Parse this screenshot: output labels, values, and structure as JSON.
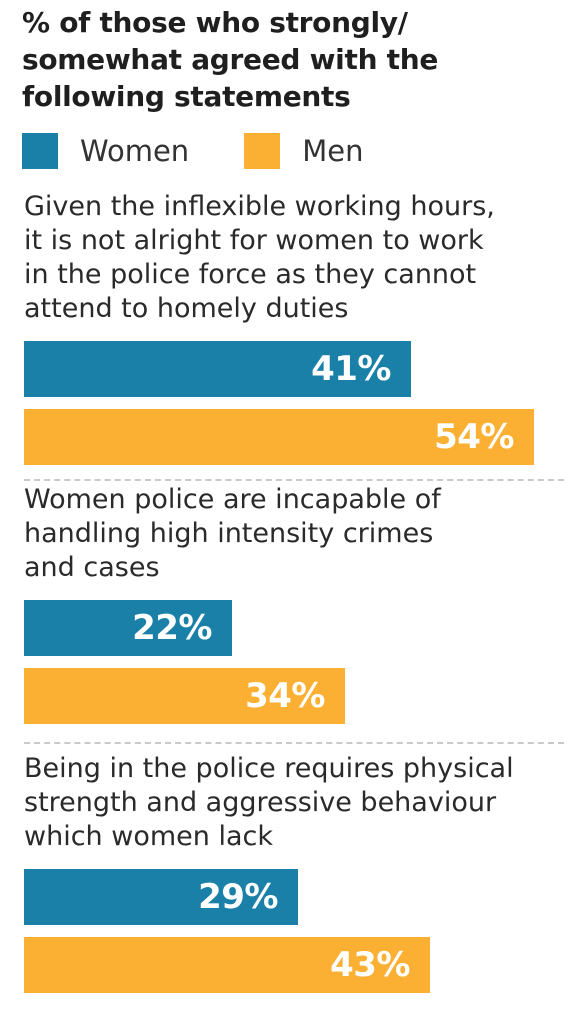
{
  "chart_data": {
    "type": "bar",
    "orientation": "horizontal",
    "title": "% of those who strongly/ somewhat agreed with the following statements",
    "title_lines": [
      "% of those who strongly/",
      "somewhat agreed with the",
      "following statements"
    ],
    "legend": [
      {
        "name": "Women",
        "color": "#1a80a8"
      },
      {
        "name": "Men",
        "color": "#fbb034"
      }
    ],
    "legend_placement": "top-left",
    "categories": [
      {
        "lines": [
          "Given the inflexible working hours,",
          "it is not alright for women to work",
          "in the police force as they cannot",
          "attend to homely duties"
        ]
      },
      {
        "lines": [
          "Women police are incapable of",
          "handling high intensity crimes",
          "and cases"
        ]
      },
      {
        "lines": [
          "Being in the police requires physical",
          "strength and aggressive behaviour",
          "which women lack"
        ]
      }
    ],
    "series": [
      {
        "name": "Women",
        "values": [
          41,
          22,
          29
        ],
        "labels": [
          "41%",
          "22%",
          "29%"
        ],
        "color": "#1a80a8"
      },
      {
        "name": "Men",
        "values": [
          54,
          34,
          43
        ],
        "labels": [
          "54%",
          "34%",
          "43%"
        ],
        "color": "#fbb034"
      }
    ],
    "xlim": [
      0,
      55
    ],
    "grid": false
  }
}
